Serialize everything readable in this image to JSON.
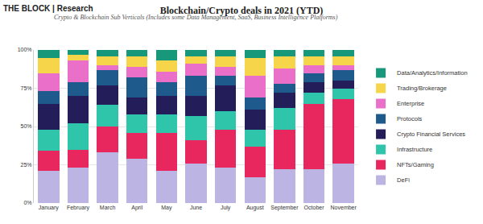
{
  "chart_data": {
    "type": "bar",
    "stacked": true,
    "title": "Blockchain/Crypto deals in 2021 (YTD)",
    "subtitle": "Crypto & Blockchain Sub Verticals (Includes some Data Management, SaaS, Business Intelligence Platforms)",
    "annotations": [
      "THE BLOCK | Research"
    ],
    "categories": [
      "January",
      "February",
      "March",
      "April",
      "May",
      "June",
      "July",
      "August",
      "September",
      "October",
      "November"
    ],
    "series": [
      {
        "name": "DeFi",
        "color": "#bcb4e3",
        "values": [
          21,
          23,
          33,
          29,
          21,
          26,
          23,
          17,
          22,
          22,
          26
        ]
      },
      {
        "name": "NFTs/Gaming",
        "color": "#e8275f",
        "values": [
          13,
          12,
          17,
          17,
          25,
          15,
          25,
          20,
          26,
          43,
          42
        ]
      },
      {
        "name": "Infrastructure",
        "color": "#2ec5aa",
        "values": [
          14,
          17,
          14,
          12,
          12,
          16,
          12,
          11,
          14,
          7,
          7
        ]
      },
      {
        "name": "Crypto Financial Services",
        "color": "#231d5a",
        "values": [
          17,
          18,
          13,
          11,
          12,
          13,
          17,
          13,
          10,
          7,
          5
        ]
      },
      {
        "name": "Protocols",
        "color": "#1e5b8c",
        "values": [
          8,
          9,
          10,
          13,
          9,
          13,
          6,
          8,
          6,
          6,
          7
        ]
      },
      {
        "name": "Enterprise",
        "color": "#ea6fc8",
        "values": [
          12,
          14,
          3,
          7,
          7,
          8,
          6,
          14,
          10,
          5,
          3
        ]
      },
      {
        "name": "Trading/Brokerage",
        "color": "#f6d54a",
        "values": [
          10,
          4,
          6,
          7,
          7,
          5,
          7,
          12,
          8,
          6,
          6
        ]
      },
      {
        "name": "Data/Analytics/Information",
        "color": "#17987a",
        "values": [
          5,
          3,
          4,
          4,
          7,
          4,
          4,
          5,
          4,
          4,
          4
        ]
      }
    ],
    "ylim": [
      0,
      100
    ],
    "yticks": [
      {
        "value": 0,
        "label": "0%"
      },
      {
        "value": 25,
        "label": "25%"
      },
      {
        "value": 50,
        "label": "50%"
      },
      {
        "value": 75,
        "label": "75%"
      },
      {
        "value": 100,
        "label": "100%"
      }
    ],
    "grid": true,
    "legend": "right"
  }
}
